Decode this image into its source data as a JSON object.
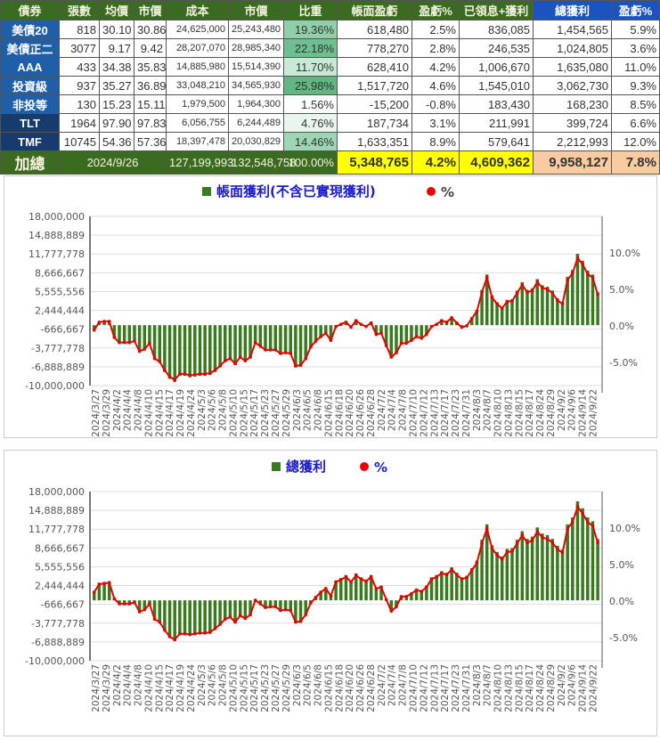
{
  "table": {
    "headers": [
      "債券",
      "張數",
      "均價",
      "市價",
      "成本",
      "市價",
      "比重",
      "帳面盈虧",
      "盈虧%",
      "已領息+獲利",
      "總獲利",
      "盈虧%"
    ],
    "rows": [
      [
        "美債20",
        "818",
        "30.10",
        "30.86",
        "24,625,000",
        "25,243,480",
        "19.36%",
        "618,480",
        "2.5%",
        "836,085",
        "1,454,565",
        "5.9%"
      ],
      [
        "美債正二",
        "3077",
        "9.17",
        "9.42",
        "28,207,070",
        "28,985,340",
        "22.18%",
        "778,270",
        "2.8%",
        "246,535",
        "1,024,805",
        "3.6%"
      ],
      [
        "AAA",
        "433",
        "34.38",
        "35.83",
        "14,885,980",
        "15,514,390",
        "11.70%",
        "628,410",
        "4.2%",
        "1,006,670",
        "1,635,080",
        "11.0%"
      ],
      [
        "投資級",
        "937",
        "35.27",
        "36.89",
        "33,048,210",
        "34,565,930",
        "25.98%",
        "1,517,720",
        "4.6%",
        "1,545,010",
        "3,062,730",
        "9.3%"
      ],
      [
        "非投等",
        "130",
        "15.23",
        "15.11",
        "1,979,500",
        "1,964,300",
        "1.56%",
        "-15,200",
        "-0.8%",
        "183,430",
        "168,230",
        "8.5%"
      ],
      [
        "TLT",
        "1964",
        "97.90",
        "97.83",
        "6,056,755",
        "6,244,489",
        "4.76%",
        "187,734",
        "3.1%",
        "211,991",
        "399,724",
        "6.6%"
      ],
      [
        "TMF",
        "10745",
        "54.36",
        "57.36",
        "18,397,478",
        "20,030,829",
        "14.46%",
        "1,633,351",
        "8.9%",
        "579,641",
        "2,212,993",
        "12.0%"
      ]
    ],
    "weight_colors": [
      "#8fd0a8",
      "#6cc090",
      "#c8ead5",
      "#5fb882",
      "#ffffff",
      "#e8f6ee",
      "#9cd6b2"
    ],
    "total": {
      "label": "加總",
      "date": "2024/9/26",
      "cost": "127,199,993",
      "market": "132,548,758",
      "weight": "100.00%",
      "book_pl": "5,348,765",
      "book_pct": "4.2%",
      "realized": "4,609,362",
      "total_pl": "9,958,127",
      "total_pct": "7.8%"
    }
  },
  "chart_data": [
    {
      "type": "bar+line",
      "legend": [
        "帳面獲利(不含已實現獲利)",
        "%"
      ],
      "legend_placement": "top",
      "yticks": [
        "18,000,000",
        "14,888,889",
        "11,777,778",
        "8,666,667",
        "5,555,556",
        "2,444,444",
        "-666,667",
        "-3,777,778",
        "-6,888,889",
        "-10,000,000"
      ],
      "ylim": [
        -10000000,
        18000000
      ],
      "y2ticks": [
        "10.0%",
        "5.0%",
        "0.0%",
        "-5.0%"
      ],
      "y2lim": [
        -8.2,
        15
      ],
      "bar_color": "#3a7a1e",
      "line_color": "#e60000",
      "grid": true,
      "bars_millions": [
        -0.76,
        0.64,
        0.76,
        0.76,
        -2.03,
        -2.92,
        -2.92,
        -2.92,
        -2.67,
        -4.45,
        -4.06,
        -3.05,
        -5.72,
        -6.22,
        -7.75,
        -8.89,
        -9.4,
        -8.38,
        -8.38,
        -8.64,
        -8.51,
        -8.38,
        -8.38,
        -8.26,
        -7.75,
        -6.99,
        -6.1,
        -5.72,
        -6.6,
        -5.46,
        -6.1,
        -5.46,
        -2.92,
        -3.56,
        -4.19,
        -4.19,
        -4.19,
        -4.83,
        -4.7,
        -4.83,
        -6.99,
        -6.86,
        -5.72,
        -3.68,
        -2.67,
        -1.91,
        -1.27,
        -2.54,
        -0.13,
        0.25,
        0.64,
        -0.25,
        0.89,
        0.25,
        -0.13,
        0.51,
        -1.52,
        -1.27,
        -3.43,
        -5.46,
        -4.7,
        -3.05,
        -3.05,
        -2.54,
        -1.91,
        -2.16,
        -1.52,
        -0.13,
        0.25,
        0.89,
        0.64,
        1.4,
        0.51,
        -0.25,
        0,
        1.27,
        2.54,
        5.84,
        8.38,
        4.95,
        3.81,
        3.05,
        4.19,
        4.32,
        5.72,
        7.11,
        5.84,
        6.1,
        7.62,
        6.6,
        6.35,
        5.72,
        4.45,
        3.81,
        8.0,
        9.14,
        11.81,
        10.67,
        9.02,
        8.38,
        5.46
      ],
      "pct": [
        -0.6,
        0.5,
        0.6,
        0.6,
        -1.6,
        -2.3,
        -2.3,
        -2.3,
        -2.1,
        -3.5,
        -3.2,
        -2.4,
        -4.5,
        -4.9,
        -6.1,
        -7.0,
        -7.4,
        -6.6,
        -6.6,
        -6.8,
        -6.7,
        -6.6,
        -6.6,
        -6.5,
        -6.1,
        -5.5,
        -4.8,
        -4.5,
        -5.2,
        -4.3,
        -4.8,
        -4.3,
        -2.3,
        -2.8,
        -3.3,
        -3.3,
        -3.3,
        -3.8,
        -3.7,
        -3.8,
        -5.5,
        -5.4,
        -4.5,
        -2.9,
        -2.1,
        -1.5,
        -1.0,
        -2.0,
        -0.1,
        0.2,
        0.5,
        -0.2,
        0.7,
        0.2,
        -0.1,
        0.4,
        -1.2,
        -1.0,
        -2.7,
        -4.3,
        -3.7,
        -2.4,
        -2.4,
        -2.0,
        -1.5,
        -1.7,
        -1.2,
        -0.1,
        0.2,
        0.7,
        0.5,
        1.1,
        0.4,
        -0.2,
        0,
        1.0,
        2.0,
        4.6,
        6.6,
        3.9,
        3.0,
        2.4,
        3.3,
        3.4,
        4.5,
        5.6,
        4.6,
        4.8,
        6.0,
        5.2,
        5.0,
        4.5,
        3.5,
        3.0,
        6.3,
        7.2,
        9.3,
        8.4,
        7.1,
        6.6,
        4.3
      ]
    },
    {
      "type": "bar+line",
      "legend": [
        "總獲利",
        "%"
      ],
      "legend_placement": "top",
      "yticks": [
        "18,000,000",
        "14,888,889",
        "11,777,778",
        "8,666,667",
        "5,555,556",
        "2,444,444",
        "-666,667",
        "-3,777,778",
        "-6,888,889",
        "-10,000,000"
      ],
      "ylim": [
        -10000000,
        18000000
      ],
      "y2ticks": [
        "10.0%",
        "5.0%",
        "0.0%",
        "-5.0%"
      ],
      "y2lim": [
        -8.2,
        15
      ],
      "bar_color": "#3a7a1e",
      "line_color": "#e60000",
      "grid": true,
      "bars_millions": [
        1.52,
        2.92,
        3.05,
        3.18,
        0.38,
        -0.51,
        -0.51,
        -0.51,
        -0.25,
        -1.91,
        -1.52,
        -0.51,
        -3.18,
        -3.68,
        -5.08,
        -6.22,
        -6.73,
        -5.72,
        -5.72,
        -5.84,
        -5.72,
        -5.59,
        -5.59,
        -5.46,
        -4.83,
        -4.06,
        -3.18,
        -2.79,
        -3.68,
        -2.54,
        -3.05,
        -2.41,
        0.13,
        -0.51,
        -1.14,
        -1.02,
        -1.02,
        -1.65,
        -1.52,
        -1.65,
        -3.68,
        -3.56,
        -2.41,
        -0.38,
        0.64,
        1.52,
        2.16,
        0.89,
        3.3,
        3.68,
        4.19,
        3.3,
        4.45,
        3.81,
        3.43,
        4.19,
        2.16,
        2.41,
        0.25,
        -1.78,
        -1.02,
        0.76,
        0.76,
        1.27,
        1.91,
        1.65,
        2.41,
        3.81,
        4.19,
        4.83,
        4.57,
        5.46,
        4.57,
        3.81,
        4.06,
        5.33,
        6.6,
        10.03,
        12.57,
        9.14,
        8.0,
        7.24,
        8.51,
        8.64,
        10.03,
        11.43,
        10.16,
        10.54,
        12.07,
        11.05,
        10.8,
        10.16,
        9.02,
        8.38,
        12.57,
        13.72,
        16.38,
        15.24,
        13.72,
        13.08,
        10.16
      ],
      "pct": [
        1.2,
        2.3,
        2.4,
        2.5,
        0.3,
        -0.4,
        -0.4,
        -0.4,
        -0.2,
        -1.5,
        -1.2,
        -0.4,
        -2.5,
        -2.9,
        -4.0,
        -4.9,
        -5.3,
        -4.5,
        -4.5,
        -4.6,
        -4.5,
        -4.4,
        -4.4,
        -4.3,
        -3.8,
        -3.2,
        -2.5,
        -2.2,
        -2.9,
        -2.0,
        -2.4,
        -1.9,
        0.1,
        -0.4,
        -0.9,
        -0.8,
        -0.8,
        -1.3,
        -1.2,
        -1.3,
        -2.9,
        -2.8,
        -1.9,
        -0.3,
        0.5,
        1.2,
        1.7,
        0.7,
        2.6,
        2.9,
        3.3,
        2.6,
        3.5,
        3.0,
        2.7,
        3.3,
        1.7,
        1.9,
        0.2,
        -1.4,
        -0.8,
        0.6,
        0.6,
        1.0,
        1.5,
        1.3,
        1.9,
        3.0,
        3.3,
        3.8,
        3.6,
        4.3,
        3.6,
        3.0,
        3.2,
        4.2,
        5.2,
        7.9,
        9.9,
        7.2,
        6.3,
        5.7,
        6.7,
        6.8,
        7.9,
        9.0,
        8.0,
        8.3,
        9.5,
        8.7,
        8.5,
        8.0,
        7.1,
        6.6,
        9.9,
        10.8,
        12.9,
        12.0,
        10.8,
        10.3,
        8.0
      ]
    }
  ],
  "xlabels": [
    "2024/3/27",
    "2024/3/29",
    "2024/4/2",
    "2024/4/4",
    "2024/4/8",
    "2024/4/10",
    "2024/4/15",
    "2024/4/17",
    "2024/4/19",
    "2024/4/24",
    "2024/5/3",
    "2024/5/6",
    "2024/5/8",
    "2024/5/10",
    "2024/5/15",
    "2024/5/17",
    "2024/5/23",
    "2024/5/27",
    "2024/5/29",
    "2024/6/3",
    "2024/6/5",
    "2024/6/8",
    "2024/6/15",
    "2024/6/18",
    "2024/6/20",
    "2024/6/26",
    "2024/6/28",
    "2024/7/2",
    "2024/7/4",
    "2024/7/8",
    "2024/7/10",
    "2024/7/12",
    "2024/7/13",
    "2024/7/17",
    "2024/7/23",
    "2024/7/31",
    "2024/8/3",
    "2024/8/7",
    "2024/8/10",
    "2024/8/13",
    "2024/8/15",
    "2024/8/17",
    "2024/8/24",
    "2024/8/29",
    "2024/9/2",
    "2024/9/6",
    "2024/9/14",
    "2024/9/22"
  ]
}
